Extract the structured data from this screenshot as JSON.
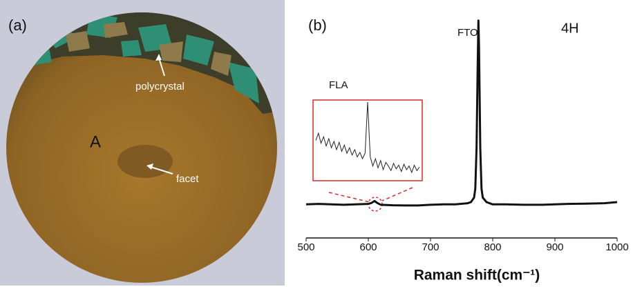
{
  "photo": {
    "label": "(a)",
    "annotations": [
      "polycrystal",
      "A",
      "facet"
    ]
  },
  "chart_data": {
    "type": "line",
    "label": "(b)",
    "x_label": "Raman shift(cm⁻¹)",
    "annotations": [
      "FTO",
      "4H",
      "FLA"
    ],
    "x": [
      500,
      520,
      540,
      560,
      580,
      600,
      605,
      610,
      615,
      620,
      640,
      660,
      680,
      700,
      720,
      740,
      760,
      765,
      770,
      772,
      774,
      776,
      777,
      778,
      780,
      782,
      784,
      790,
      800,
      820,
      850,
      880,
      900,
      920,
      950,
      980,
      1000
    ],
    "values": [
      15,
      15.2,
      15,
      14.8,
      15,
      15.2,
      15.6,
      16.5,
      15.5,
      14.8,
      14.6,
      14.5,
      14.5,
      14.8,
      15,
      15,
      15.5,
      16,
      18,
      22,
      40,
      80,
      97,
      85,
      40,
      22,
      18,
      16,
      15,
      15,
      14.8,
      14.8,
      15,
      15.2,
      15.3,
      15.5,
      16
    ],
    "color": "#111111",
    "xlim": [
      500,
      1000
    ],
    "ylim": [
      0,
      100
    ],
    "xticks": [
      500,
      600,
      700,
      800,
      900,
      1000
    ],
    "inset": {
      "x": [
        590,
        591,
        592,
        593,
        594,
        595,
        596,
        597,
        598,
        599,
        600,
        601,
        602,
        603,
        604,
        605,
        606,
        607,
        608,
        609,
        610,
        611,
        612,
        613,
        614,
        615,
        616,
        617,
        618,
        619,
        620,
        621,
        622,
        623,
        624,
        625,
        626,
        627,
        628,
        629,
        630
      ],
      "values": [
        58,
        66,
        55,
        62,
        52,
        60,
        50,
        57,
        48,
        56,
        46,
        53,
        44,
        50,
        42,
        48,
        40,
        45,
        38,
        44,
        100,
        40,
        30,
        38,
        28,
        36,
        26,
        34,
        30,
        25,
        33,
        27,
        31,
        24,
        32,
        26,
        30,
        23,
        31,
        25,
        29
      ],
      "color": "#222222"
    }
  }
}
